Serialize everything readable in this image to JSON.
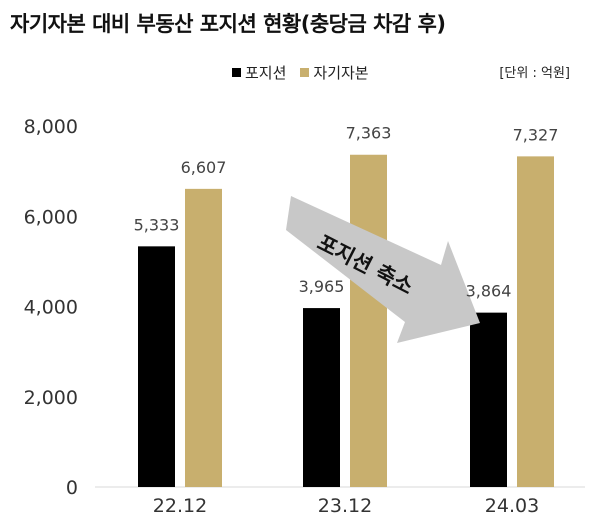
{
  "title": "자기자본 대비 부동산 포지션 현황(충당금 차감 후)",
  "unit_label": "[단위 : 억원]",
  "annotation": "포지션 축소",
  "colors": {
    "position": "#000000",
    "equity": "#C8AF6E",
    "arrow": "#C8C8C8"
  },
  "chart_data": {
    "type": "bar",
    "categories": [
      "22.12",
      "23.12",
      "24.03"
    ],
    "series": [
      {
        "name": "포지션",
        "values": [
          5333,
          3965,
          3864
        ],
        "labels": [
          "5,333",
          "3,965",
          "3,864"
        ]
      },
      {
        "name": "자기자본",
        "values": [
          6607,
          7363,
          7327
        ],
        "labels": [
          "6,607",
          "7,363",
          "7,327"
        ]
      }
    ],
    "yticks": [
      "0",
      "2,000",
      "4,000",
      "6,000",
      "8,000"
    ],
    "ylim": [
      0,
      8000
    ],
    "grid": false,
    "legend": "top-center"
  }
}
